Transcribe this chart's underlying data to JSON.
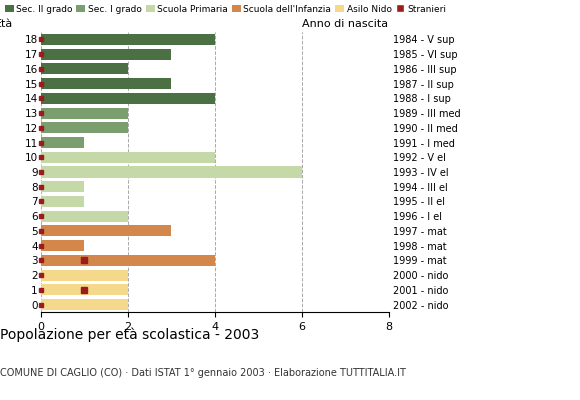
{
  "ages": [
    18,
    17,
    16,
    15,
    14,
    13,
    12,
    11,
    10,
    9,
    8,
    7,
    6,
    5,
    4,
    3,
    2,
    1,
    0
  ],
  "anno_nascita": [
    "1984 - V sup",
    "1985 - VI sup",
    "1986 - III sup",
    "1987 - II sup",
    "1988 - I sup",
    "1989 - III med",
    "1990 - II med",
    "1991 - I med",
    "1992 - V el",
    "1993 - IV el",
    "1994 - III el",
    "1995 - II el",
    "1996 - I el",
    "1997 - mat",
    "1998 - mat",
    "1999 - mat",
    "2000 - nido",
    "2001 - nido",
    "2002 - nido"
  ],
  "values": [
    4,
    3,
    2,
    3,
    4,
    2,
    2,
    1,
    4,
    6,
    1,
    1,
    2,
    3,
    1,
    4,
    2,
    2,
    2
  ],
  "stranieri": [
    null,
    null,
    null,
    null,
    null,
    null,
    null,
    null,
    null,
    null,
    null,
    null,
    null,
    null,
    null,
    1,
    null,
    1,
    null
  ],
  "categories": {
    "sec_ii": [
      18,
      17,
      16,
      15,
      14
    ],
    "sec_i": [
      13,
      12,
      11
    ],
    "primaria": [
      10,
      9,
      8,
      7,
      6
    ],
    "infanzia": [
      5,
      4,
      3
    ],
    "nido": [
      2,
      1,
      0
    ]
  },
  "colors": {
    "sec_ii": "#4a7043",
    "sec_i": "#7a9e6e",
    "primaria": "#c5d9a8",
    "infanzia": "#d4874a",
    "nido": "#f5d98b",
    "stranieri": "#9b1c1c"
  },
  "legend_labels": [
    "Sec. II grado",
    "Sec. I grado",
    "Scuola Primaria",
    "Scuola dell'Infanzia",
    "Asilo Nido",
    "Stranieri"
  ],
  "title": "Popolazione per età scolastica - 2003",
  "subtitle": "COMUNE DI CAGLIO (CO) · Dati ISTAT 1° gennaio 2003 · Elaborazione TUTTITALIA.IT",
  "label_eta": "Età",
  "label_anno": "Anno di nascita",
  "xlim": [
    0,
    8
  ],
  "xticks": [
    0,
    2,
    4,
    6,
    8
  ],
  "background_color": "#ffffff"
}
